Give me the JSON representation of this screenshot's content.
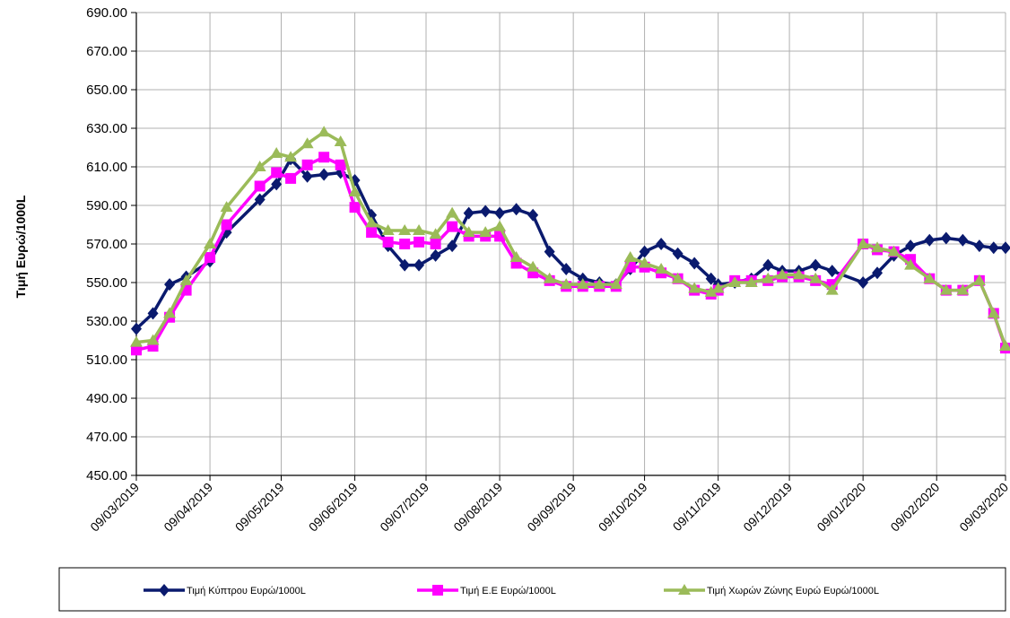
{
  "chart_data": {
    "type": "line",
    "ylabel": "Τιμή Ευρώ/1000L",
    "xlabel": "",
    "title": "",
    "ylim": [
      450,
      690
    ],
    "y_ticks": [
      "450.00",
      "470.00",
      "490.00",
      "510.00",
      "530.00",
      "550.00",
      "570.00",
      "590.00",
      "610.00",
      "630.00",
      "650.00",
      "670.00",
      "690.00"
    ],
    "x_ticks": [
      "09/03/2019",
      "09/04/2019",
      "09/05/2019",
      "09/06/2019",
      "09/07/2019",
      "09/08/2019",
      "09/09/2019",
      "09/10/2019",
      "09/11/2019",
      "09/12/2019",
      "09/01/2020",
      "09/02/2020",
      "09/03/2020"
    ],
    "grid": true,
    "legend_position": "bottom",
    "series": [
      {
        "name": "Τιμή  Κύπτρου Ευρώ/1000L",
        "color": "#0a1a6e",
        "marker": "diamond",
        "points": [
          [
            "2019-03-09",
            526
          ],
          [
            "2019-03-16",
            534
          ],
          [
            "2019-03-23",
            549
          ],
          [
            "2019-03-30",
            553
          ],
          [
            "2019-04-09",
            561
          ],
          [
            "2019-04-16",
            576
          ],
          [
            "2019-04-30",
            593
          ],
          [
            "2019-05-07",
            601
          ],
          [
            "2019-05-13",
            614
          ],
          [
            "2019-05-20",
            605
          ],
          [
            "2019-05-27",
            606
          ],
          [
            "2019-06-03",
            607
          ],
          [
            "2019-06-09",
            603
          ],
          [
            "2019-06-16",
            585
          ],
          [
            "2019-06-23",
            569
          ],
          [
            "2019-06-30",
            559
          ],
          [
            "2019-07-06",
            559
          ],
          [
            "2019-07-13",
            564
          ],
          [
            "2019-07-20",
            569
          ],
          [
            "2019-07-27",
            586
          ],
          [
            "2019-08-03",
            587
          ],
          [
            "2019-08-09",
            586
          ],
          [
            "2019-08-16",
            588
          ],
          [
            "2019-08-23",
            585
          ],
          [
            "2019-08-30",
            566
          ],
          [
            "2019-09-06",
            557
          ],
          [
            "2019-09-13",
            552
          ],
          [
            "2019-09-20",
            550
          ],
          [
            "2019-09-27",
            549
          ],
          [
            "2019-10-03",
            557
          ],
          [
            "2019-10-09",
            566
          ],
          [
            "2019-10-16",
            570
          ],
          [
            "2019-10-23",
            565
          ],
          [
            "2019-10-30",
            560
          ],
          [
            "2019-11-06",
            552
          ],
          [
            "2019-11-09",
            549
          ],
          [
            "2019-11-16",
            550
          ],
          [
            "2019-11-23",
            552
          ],
          [
            "2019-11-30",
            559
          ],
          [
            "2019-12-06",
            556
          ],
          [
            "2019-12-13",
            556
          ],
          [
            "2019-12-20",
            559
          ],
          [
            "2019-12-27",
            556
          ],
          [
            "2020-01-09",
            550
          ],
          [
            "2020-01-15",
            555
          ],
          [
            "2020-01-22",
            564
          ],
          [
            "2020-01-29",
            569
          ],
          [
            "2020-02-06",
            572
          ],
          [
            "2020-02-13",
            573
          ],
          [
            "2020-02-20",
            572
          ],
          [
            "2020-02-27",
            569
          ],
          [
            "2020-03-04",
            568
          ],
          [
            "2020-03-09",
            568
          ]
        ]
      },
      {
        "name": "Τιμή  Ε.Ε  Ευρώ/1000L",
        "color": "#ff00ff",
        "marker": "square",
        "points": [
          [
            "2019-03-09",
            515
          ],
          [
            "2019-03-16",
            517
          ],
          [
            "2019-03-23",
            532
          ],
          [
            "2019-03-30",
            546
          ],
          [
            "2019-04-09",
            563
          ],
          [
            "2019-04-16",
            580
          ],
          [
            "2019-04-30",
            600
          ],
          [
            "2019-05-07",
            607
          ],
          [
            "2019-05-13",
            604
          ],
          [
            "2019-05-20",
            611
          ],
          [
            "2019-05-27",
            615
          ],
          [
            "2019-06-03",
            611
          ],
          [
            "2019-06-09",
            589
          ],
          [
            "2019-06-16",
            576
          ],
          [
            "2019-06-23",
            571
          ],
          [
            "2019-06-30",
            570
          ],
          [
            "2019-07-06",
            571
          ],
          [
            "2019-07-13",
            570
          ],
          [
            "2019-07-20",
            579
          ],
          [
            "2019-07-27",
            574
          ],
          [
            "2019-08-03",
            574
          ],
          [
            "2019-08-09",
            574
          ],
          [
            "2019-08-16",
            560
          ],
          [
            "2019-08-23",
            555
          ],
          [
            "2019-08-30",
            551
          ],
          [
            "2019-09-06",
            548
          ],
          [
            "2019-09-13",
            548
          ],
          [
            "2019-09-20",
            548
          ],
          [
            "2019-09-27",
            548
          ],
          [
            "2019-10-03",
            558
          ],
          [
            "2019-10-09",
            558
          ],
          [
            "2019-10-16",
            555
          ],
          [
            "2019-10-23",
            552
          ],
          [
            "2019-10-30",
            546
          ],
          [
            "2019-11-06",
            544
          ],
          [
            "2019-11-09",
            546
          ],
          [
            "2019-11-16",
            551
          ],
          [
            "2019-11-23",
            551
          ],
          [
            "2019-11-30",
            551
          ],
          [
            "2019-12-06",
            553
          ],
          [
            "2019-12-13",
            553
          ],
          [
            "2019-12-20",
            551
          ],
          [
            "2019-12-27",
            549
          ],
          [
            "2020-01-09",
            570
          ],
          [
            "2020-01-15",
            567
          ],
          [
            "2020-01-22",
            566
          ],
          [
            "2020-01-29",
            562
          ],
          [
            "2020-02-06",
            552
          ],
          [
            "2020-02-13",
            546
          ],
          [
            "2020-02-20",
            546
          ],
          [
            "2020-02-27",
            551
          ],
          [
            "2020-03-04",
            534
          ],
          [
            "2020-03-09",
            516
          ]
        ]
      },
      {
        "name": "Τιμή  Χωρών  Ζώνης Ευρώ  Ευρώ/1000L",
        "color": "#9bbb59",
        "marker": "triangle",
        "points": [
          [
            "2019-03-09",
            519
          ],
          [
            "2019-03-16",
            520
          ],
          [
            "2019-03-23",
            534
          ],
          [
            "2019-03-30",
            551
          ],
          [
            "2019-04-09",
            570
          ],
          [
            "2019-04-16",
            589
          ],
          [
            "2019-04-30",
            610
          ],
          [
            "2019-05-07",
            617
          ],
          [
            "2019-05-13",
            615
          ],
          [
            "2019-05-20",
            622
          ],
          [
            "2019-05-27",
            628
          ],
          [
            "2019-06-03",
            623
          ],
          [
            "2019-06-09",
            597
          ],
          [
            "2019-06-16",
            581
          ],
          [
            "2019-06-23",
            577
          ],
          [
            "2019-06-30",
            577
          ],
          [
            "2019-07-06",
            577
          ],
          [
            "2019-07-13",
            575
          ],
          [
            "2019-07-20",
            586
          ],
          [
            "2019-07-27",
            576
          ],
          [
            "2019-08-03",
            576
          ],
          [
            "2019-08-09",
            579
          ],
          [
            "2019-08-16",
            563
          ],
          [
            "2019-08-23",
            558
          ],
          [
            "2019-08-30",
            552
          ],
          [
            "2019-09-06",
            549
          ],
          [
            "2019-09-13",
            549
          ],
          [
            "2019-09-20",
            549
          ],
          [
            "2019-09-27",
            549
          ],
          [
            "2019-10-03",
            563
          ],
          [
            "2019-10-09",
            560
          ],
          [
            "2019-10-16",
            557
          ],
          [
            "2019-10-23",
            552
          ],
          [
            "2019-10-30",
            547
          ],
          [
            "2019-11-06",
            545
          ],
          [
            "2019-11-09",
            547
          ],
          [
            "2019-11-16",
            550
          ],
          [
            "2019-11-23",
            550
          ],
          [
            "2019-11-30",
            552
          ],
          [
            "2019-12-06",
            554
          ],
          [
            "2019-12-13",
            554
          ],
          [
            "2019-12-20",
            552
          ],
          [
            "2019-12-27",
            546
          ],
          [
            "2020-01-09",
            570
          ],
          [
            "2020-01-15",
            568
          ],
          [
            "2020-01-22",
            566
          ],
          [
            "2020-01-29",
            559
          ],
          [
            "2020-02-06",
            552
          ],
          [
            "2020-02-13",
            546
          ],
          [
            "2020-02-20",
            546
          ],
          [
            "2020-02-27",
            551
          ],
          [
            "2020-03-04",
            534
          ],
          [
            "2020-03-09",
            517
          ]
        ]
      }
    ]
  }
}
